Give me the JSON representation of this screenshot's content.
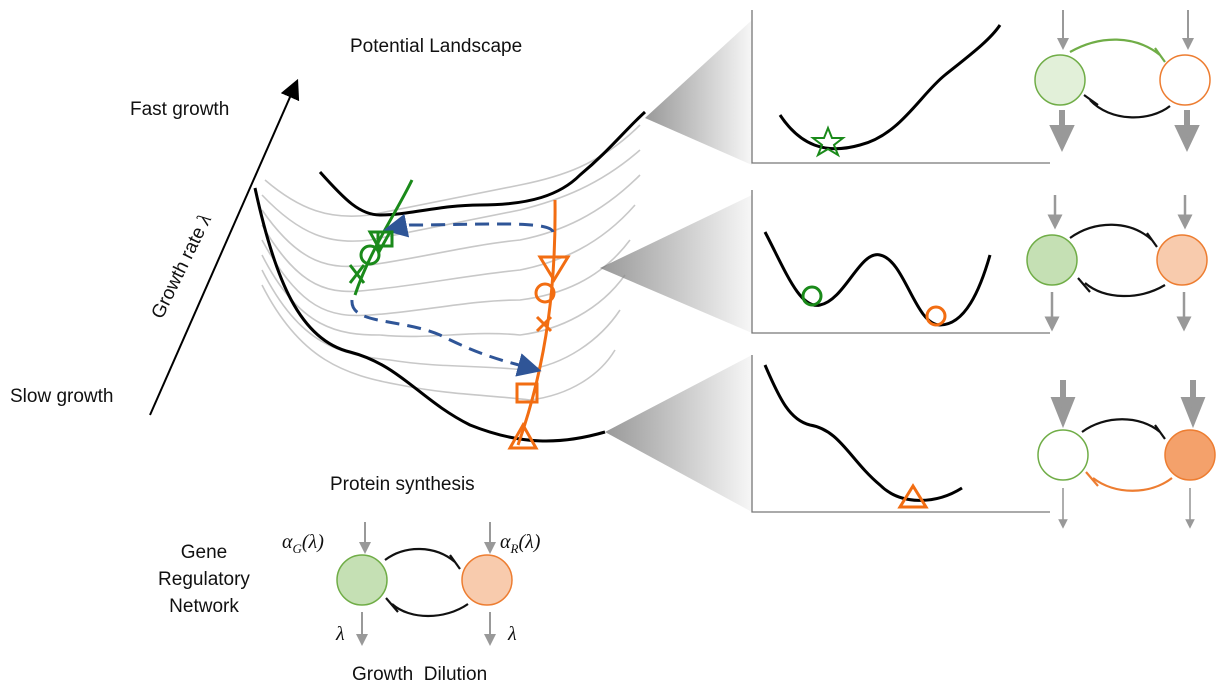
{
  "labels": {
    "title": "Potential Landscape",
    "fast": "Fast growth",
    "axis": {
      "text": "Growth rate ",
      "symbol": "λ"
    },
    "slow": "Slow growth",
    "protein": "Protein synthesis",
    "grn": [
      "Gene",
      "Regulatory",
      "Network"
    ],
    "alpha_g": {
      "base": "α",
      "sub": "G",
      "arg": "(λ)"
    },
    "alpha_r": {
      "base": "α",
      "sub": "R",
      "arg": "(λ)"
    },
    "dilution_g": "λ",
    "dilution_r": "λ",
    "dilution": "Growth  Dilution"
  }
}
